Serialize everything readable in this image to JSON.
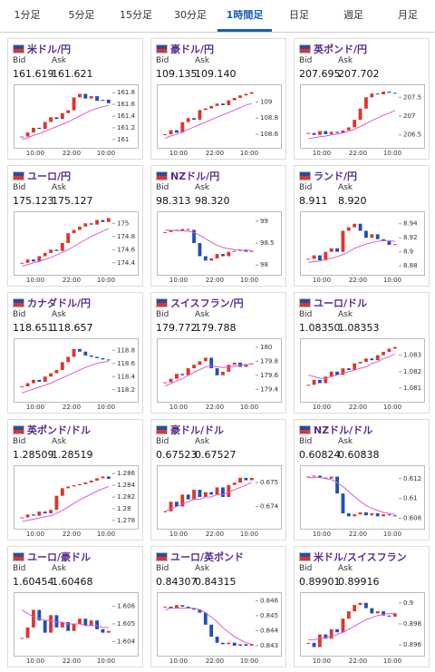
{
  "tabs": [
    "1分足",
    "5分足",
    "15分足",
    "30分足",
    "1時間足",
    "日足",
    "週足",
    "月足"
  ],
  "active_tab": 4,
  "bid_label": "Bid",
  "ask_label": "Ask",
  "time_labels": [
    "10:00",
    "22:00",
    "10:00"
  ],
  "cards": [
    {
      "title": "米ドル/円",
      "bid": 161.619,
      "ask": 161.621,
      "ylim": [
        160.95,
        161.85
      ],
      "yticks": [
        161,
        161.2,
        161.4,
        161.6,
        161.8
      ],
      "closes": [
        161.05,
        161.12,
        161.2,
        161.18,
        161.3,
        161.38,
        161.35,
        161.45,
        161.5,
        161.72,
        161.78,
        161.7,
        161.74,
        161.66,
        161.68,
        161.62
      ],
      "ma": [
        161.0,
        161.03,
        161.07,
        161.1,
        161.14,
        161.18,
        161.22,
        161.26,
        161.3,
        161.35,
        161.4,
        161.45,
        161.5,
        161.53,
        161.56,
        161.58
      ]
    },
    {
      "title": "豪ドル/円",
      "bid": 109.135,
      "ask": {
        "value": 109.14,
        "label": "109.140"
      },
      "ylim": [
        108.5,
        109.15
      ],
      "yticks": [
        108.6,
        108.8,
        109
      ],
      "closes": [
        108.6,
        108.65,
        108.62,
        108.75,
        108.8,
        108.78,
        108.9,
        108.92,
        108.95,
        108.98,
        108.96,
        109.02,
        109.05,
        109.08,
        109.1,
        109.12
      ],
      "ma": [
        108.55,
        108.58,
        108.6,
        108.63,
        108.66,
        108.69,
        108.72,
        108.75,
        108.78,
        108.81,
        108.84,
        108.87,
        108.9,
        108.93,
        108.96,
        108.98
      ]
    },
    {
      "title": "英ポンド/円",
      "bid": 207.695,
      "ask": 207.702,
      "ylim": [
        206.3,
        207.7
      ],
      "yticks": [
        206.5,
        207,
        207.5
      ],
      "closes": [
        206.55,
        206.5,
        206.6,
        206.52,
        206.58,
        206.55,
        206.62,
        206.7,
        206.9,
        207.2,
        207.5,
        207.6,
        207.58,
        207.65,
        207.62,
        207.6
      ],
      "ma": [
        206.4,
        206.42,
        206.45,
        206.47,
        206.5,
        206.52,
        206.55,
        206.6,
        206.65,
        206.72,
        206.8,
        206.88,
        206.95,
        207.02,
        207.08,
        207.15
      ]
    },
    {
      "title": "ユーロ/円",
      "bid": 175.123,
      "ask": 175.127,
      "ylim": [
        174.3,
        175.1
      ],
      "yticks": [
        174.4,
        174.6,
        174.8,
        175
      ],
      "closes": [
        174.4,
        174.45,
        174.42,
        174.5,
        174.55,
        174.6,
        174.58,
        174.7,
        174.85,
        174.9,
        174.95,
        175.0,
        174.98,
        175.05,
        175.02,
        175.08
      ],
      "ma": [
        174.35,
        174.37,
        174.4,
        174.42,
        174.45,
        174.48,
        174.52,
        174.56,
        174.6,
        174.65,
        174.7,
        174.75,
        174.8,
        174.84,
        174.88,
        174.92
      ]
    },
    {
      "title": "NZドル/円",
      "bid": 98.313,
      "ask": {
        "value": 98.32,
        "label": "98.320"
      },
      "ylim": [
        97.9,
        99.1
      ],
      "yticks": [
        98,
        98.5,
        99
      ],
      "closes": [
        98.75,
        98.8,
        98.78,
        98.82,
        98.8,
        98.5,
        98.2,
        98.1,
        98.15,
        98.25,
        98.2,
        98.3,
        98.32,
        98.35,
        98.3,
        98.32
      ],
      "ma": [
        98.8,
        98.79,
        98.78,
        98.78,
        98.77,
        98.74,
        98.68,
        98.6,
        98.52,
        98.45,
        98.4,
        98.37,
        98.35,
        98.34,
        98.33,
        98.33
      ]
    },
    {
      "title": "ランド/円",
      "bid": 8.911,
      "ask": {
        "value": 8.92,
        "label": "8.920"
      },
      "ylim": [
        8.875,
        8.95
      ],
      "yticks": [
        8.88,
        8.9,
        8.92,
        8.94
      ],
      "closes": [
        8.89,
        8.895,
        8.888,
        8.9,
        8.905,
        8.9,
        8.93,
        8.935,
        8.94,
        8.93,
        8.92,
        8.925,
        8.918,
        8.915,
        8.91,
        8.911
      ],
      "ma": [
        8.885,
        8.886,
        8.887,
        8.889,
        8.891,
        8.893,
        8.896,
        8.9,
        8.905,
        8.908,
        8.911,
        8.913,
        8.915,
        8.916,
        8.916,
        8.915
      ]
    },
    {
      "title": "カナダドル/円",
      "bid": 118.651,
      "ask": 118.657,
      "ylim": [
        118.1,
        118.9
      ],
      "yticks": [
        118.2,
        118.4,
        118.6,
        118.8
      ],
      "closes": [
        118.25,
        118.3,
        118.35,
        118.32,
        118.4,
        118.45,
        118.5,
        118.62,
        118.7,
        118.82,
        118.78,
        118.72,
        118.7,
        118.68,
        118.66,
        118.65
      ],
      "ma": [
        118.15,
        118.18,
        118.21,
        118.24,
        118.27,
        118.3,
        118.34,
        118.38,
        118.42,
        118.46,
        118.5,
        118.54,
        118.57,
        118.6,
        118.62,
        118.63
      ]
    },
    {
      "title": "スイスフラン/円",
      "bid": 179.772,
      "ask": 179.788,
      "ylim": [
        179.3,
        180.05
      ],
      "yticks": [
        179.4,
        179.6,
        179.8,
        180
      ],
      "closes": [
        179.5,
        179.55,
        179.62,
        179.6,
        179.7,
        179.75,
        179.8,
        179.85,
        179.7,
        179.6,
        179.65,
        179.75,
        179.78,
        179.72,
        179.76,
        179.77
      ],
      "ma": [
        179.45,
        179.48,
        179.52,
        179.55,
        179.6,
        179.64,
        179.68,
        179.72,
        179.73,
        179.72,
        179.71,
        179.72,
        179.73,
        179.74,
        179.75,
        179.76
      ]
    },
    {
      "title": "ユーロ/ドル",
      "bid": {
        "value": 1.0835,
        "label": "1.08350"
      },
      "ask": 1.08353,
      "ylim": [
        1.0805,
        1.0837
      ],
      "yticks": [
        1.081,
        1.082,
        1.083
      ],
      "closes": [
        1.0812,
        1.0815,
        1.0813,
        1.0817,
        1.082,
        1.0818,
        1.0822,
        1.0821,
        1.0825,
        1.0826,
        1.0828,
        1.0827,
        1.083,
        1.0832,
        1.0834,
        1.0835
      ],
      "ma": [
        1.0818,
        1.0817,
        1.0816,
        1.0816,
        1.0817,
        1.0818,
        1.0819,
        1.082,
        1.0821,
        1.0822,
        1.0823,
        1.0825,
        1.0826,
        1.0828,
        1.0829,
        1.0831
      ]
    },
    {
      "title": "英ポンド/ドル",
      "bid": 1.28509,
      "ask": 1.28519,
      "ylim": [
        1.2775,
        1.2865
      ],
      "yticks": [
        1.278,
        1.28,
        1.282,
        1.284,
        1.286
      ],
      "closes": [
        1.2785,
        1.279,
        1.2788,
        1.2795,
        1.2792,
        1.2798,
        1.2822,
        1.2835,
        1.2838,
        1.284,
        1.2842,
        1.2845,
        1.2848,
        1.2852,
        1.2855,
        1.2851
      ],
      "ma": [
        1.2778,
        1.278,
        1.2782,
        1.2784,
        1.2786,
        1.2788,
        1.2792,
        1.2797,
        1.2803,
        1.2809,
        1.2815,
        1.282,
        1.2825,
        1.283,
        1.2834,
        1.2838
      ]
    },
    {
      "title": "豪ドル/ドル",
      "bid": 0.67523,
      "ask": 0.67527,
      "ylim": [
        0.6733,
        0.6755
      ],
      "yticks": [
        0.674,
        0.675
      ],
      "closes": [
        0.6738,
        0.6742,
        0.674,
        0.6745,
        0.6743,
        0.6747,
        0.6744,
        0.6746,
        0.6745,
        0.6748,
        0.6744,
        0.6749,
        0.675,
        0.6752,
        0.6751,
        0.6752
      ],
      "ma": [
        0.6738,
        0.6739,
        0.674,
        0.6741,
        0.6742,
        0.6743,
        0.6743,
        0.6744,
        0.6744,
        0.6745,
        0.6745,
        0.6746,
        0.6747,
        0.6748,
        0.6749,
        0.675
      ]
    },
    {
      "title": "NZドル/ドル",
      "bid": 0.60824,
      "ask": 0.60838,
      "ylim": [
        0.6075,
        0.6128
      ],
      "yticks": [
        0.608,
        0.61,
        0.612
      ],
      "closes": [
        0.6122,
        0.6123,
        0.6121,
        0.612,
        0.6122,
        0.6105,
        0.6085,
        0.6082,
        0.6084,
        0.6086,
        0.6083,
        0.6085,
        0.6082,
        0.6084,
        0.6083,
        0.6082
      ],
      "ma": [
        0.6121,
        0.6121,
        0.6121,
        0.612,
        0.6119,
        0.6116,
        0.6112,
        0.6107,
        0.6102,
        0.6097,
        0.6093,
        0.609,
        0.6088,
        0.6086,
        0.6085,
        0.6084
      ]
    },
    {
      "title": "ユーロ/豪ドル",
      "bid": 1.60454,
      "ask": 1.60468,
      "ylim": [
        1.6035,
        1.6065
      ],
      "yticks": [
        1.604,
        1.605,
        1.606
      ],
      "closes": [
        1.6042,
        1.6048,
        1.6058,
        1.6052,
        1.6045,
        1.6055,
        1.6048,
        1.6051,
        1.6046,
        1.605,
        1.6053,
        1.6049,
        1.6052,
        1.6047,
        1.6045,
        1.6046
      ],
      "ma": [
        1.6058,
        1.6056,
        1.6054,
        1.6053,
        1.6052,
        1.6052,
        1.6051,
        1.6051,
        1.605,
        1.605,
        1.605,
        1.6049,
        1.6049,
        1.6049,
        1.6048,
        1.6048
      ]
    },
    {
      "title": "ユーロ/英ポンド",
      "bid": 0.84307,
      "ask": 0.84315,
      "ylim": [
        0.8427,
        0.8462
      ],
      "yticks": [
        0.843,
        0.844,
        0.845,
        0.846
      ],
      "closes": [
        0.8456,
        0.8455,
        0.8457,
        0.8456,
        0.8455,
        0.8454,
        0.8452,
        0.8444,
        0.8436,
        0.8432,
        0.8431,
        0.8432,
        0.843,
        0.8431,
        0.843,
        0.8431
      ],
      "ma": [
        0.8454,
        0.8455,
        0.8455,
        0.8455,
        0.8455,
        0.8455,
        0.8454,
        0.8452,
        0.8449,
        0.8446,
        0.8442,
        0.8439,
        0.8436,
        0.8434,
        0.8432,
        0.8431
      ]
    },
    {
      "title": "米ドル/スイスフラン",
      "bid": 0.89901,
      "ask": 0.89916,
      "ylim": [
        0.8955,
        0.9005
      ],
      "yticks": [
        0.896,
        0.898,
        0.9
      ],
      "closes": [
        0.8962,
        0.8958,
        0.897,
        0.8966,
        0.8975,
        0.8972,
        0.8985,
        0.8992,
        0.8998,
        0.9,
        0.8995,
        0.899,
        0.8992,
        0.8988,
        0.8987,
        0.899
      ],
      "ma": [
        0.8965,
        0.8965,
        0.8966,
        0.8967,
        0.8968,
        0.897,
        0.8972,
        0.8975,
        0.8978,
        0.8981,
        0.8984,
        0.8986,
        0.8988,
        0.8989,
        0.899,
        0.899
      ]
    }
  ]
}
